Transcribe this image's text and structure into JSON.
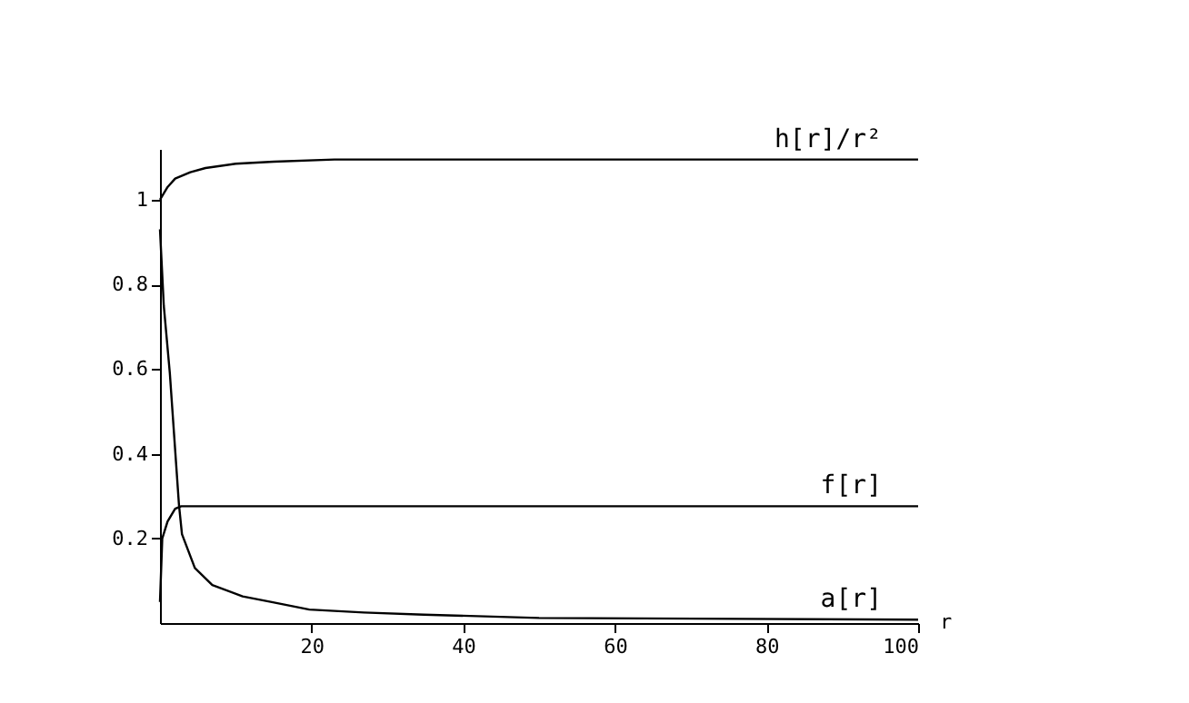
{
  "chart_data": {
    "type": "line",
    "xlabel": "r",
    "xlim": [
      0,
      100
    ],
    "ylim": [
      0,
      1.12
    ],
    "xticks": [
      20,
      40,
      60,
      80,
      100
    ],
    "yticks": [
      0.2,
      0.4,
      0.6,
      0.8,
      {
        "value": 1,
        "label": "1"
      }
    ],
    "grid": false,
    "marker": "none",
    "line_style": "solid",
    "series": [
      {
        "name": "h[r]/r²",
        "color": "#000000",
        "x": [
          0,
          1,
          2,
          4,
          6,
          10,
          15,
          23,
          100
        ],
        "values": [
          1.0,
          1.03,
          1.05,
          1.065,
          1.075,
          1.085,
          1.09,
          1.095,
          1.095
        ]
      },
      {
        "name": "f[r]",
        "color": "#000000",
        "x": [
          0,
          0.3,
          1,
          2,
          2.8,
          100
        ],
        "values": [
          0.05,
          0.2,
          0.24,
          0.27,
          0.276,
          0.276
        ]
      },
      {
        "name": "a[r]",
        "color": "#000000",
        "x": [
          0,
          0.5,
          1.3,
          2.5,
          2.9,
          4.6,
          6.9,
          10.9,
          14.9,
          19.7,
          26.9,
          34.8,
          50,
          100
        ],
        "values": [
          0.93,
          0.75,
          0.59,
          0.28,
          0.21,
          0.13,
          0.09,
          0.063,
          0.049,
          0.032,
          0.025,
          0.02,
          0.012,
          0.008
        ]
      }
    ]
  }
}
